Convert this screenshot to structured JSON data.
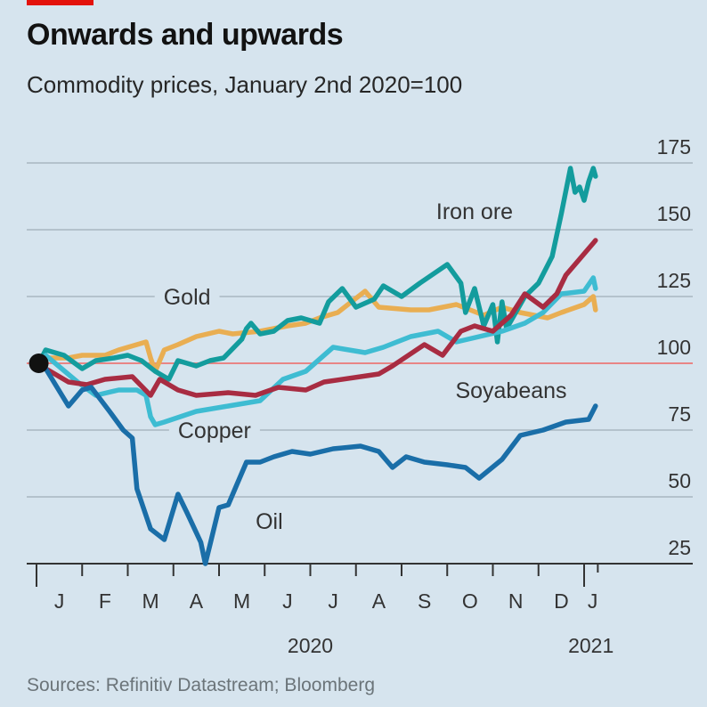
{
  "header": {
    "title": "Onwards and upwards",
    "subtitle": "Commodity prices, January 2nd 2020=100"
  },
  "footer": {
    "source": "Sources: Refinitiv Datastream; Bloomberg"
  },
  "colors": {
    "background": "#d6e4ee",
    "brand_red": "#e3120b",
    "baseline": "#e88585",
    "gridline": "#b4c2cc",
    "axis": "#333333"
  },
  "chart_data": {
    "type": "line",
    "title": "Onwards and upwards",
    "subtitle": "Commodity prices, January 2nd 2020=100",
    "xlabel": "",
    "ylabel": "",
    "x_unit": "months since Jan 1 2020",
    "xlim": [
      0,
      12.3
    ],
    "ylim": [
      25,
      175
    ],
    "yticks": [
      25,
      50,
      75,
      100,
      125,
      150,
      175
    ],
    "ytick_labels": [
      "25",
      "50",
      "75",
      "100",
      "125",
      "150",
      "175"
    ],
    "yaxis_side": "right",
    "grid": true,
    "baseline": 100,
    "xtick_labels": [
      "J",
      "F",
      "M",
      "A",
      "M",
      "J",
      "J",
      "A",
      "S",
      "O",
      "N",
      "D",
      "J"
    ],
    "year_labels": [
      {
        "label": "2020",
        "at": 6.0
      },
      {
        "label": "2021",
        "at": 12.15
      }
    ],
    "start_marker": {
      "x": 0.05,
      "y": 100
    },
    "series": [
      {
        "name": "Gold",
        "color": "#e9ae52",
        "label": "Gold",
        "x": [
          0.05,
          0.2,
          0.7,
          1.0,
          1.5,
          1.8,
          2.2,
          2.4,
          2.5,
          2.6,
          2.8,
          3.1,
          3.5,
          4.0,
          4.3,
          4.9,
          5.2,
          5.5,
          5.9,
          6.2,
          6.6,
          7.2,
          7.5,
          8.2,
          8.6,
          9.2,
          9.8,
          10.2,
          10.6,
          11.2,
          11.5,
          12.0,
          12.2,
          12.25
        ],
        "y": [
          100,
          102,
          102,
          103,
          103,
          105,
          107,
          108,
          102,
          97,
          105,
          107,
          110,
          112,
          111,
          112,
          113,
          114,
          115,
          117,
          119,
          127,
          121,
          120,
          120,
          122,
          118,
          121,
          119,
          117,
          119,
          122,
          125,
          120
        ]
      },
      {
        "name": "Iron ore",
        "color": "#139c9d",
        "label": "Iron ore",
        "x": [
          0.05,
          0.2,
          0.6,
          1.0,
          1.3,
          1.7,
          2.0,
          2.3,
          2.6,
          2.9,
          3.1,
          3.5,
          3.8,
          4.1,
          4.5,
          4.6,
          4.7,
          4.9,
          5.2,
          5.5,
          5.8,
          6.2,
          6.4,
          6.7,
          7.0,
          7.4,
          7.6,
          8.0,
          8.4,
          9.0,
          9.3,
          9.4,
          9.6,
          9.8,
          10.0,
          10.1,
          10.2,
          10.3,
          10.7,
          11.0,
          11.3,
          11.5,
          11.7,
          11.8,
          11.9,
          12.0,
          12.1,
          12.2,
          12.25
        ],
        "y": [
          100,
          105,
          103,
          98,
          101,
          102,
          103,
          101,
          97,
          94,
          101,
          99,
          101,
          102,
          109,
          113,
          115,
          111,
          112,
          116,
          117,
          115,
          123,
          128,
          121,
          124,
          129,
          125,
          130,
          137,
          130,
          119,
          128,
          114,
          122,
          108,
          123,
          113,
          125,
          130,
          140,
          156,
          173,
          164,
          166,
          161,
          168,
          173,
          170
        ]
      },
      {
        "name": "Copper",
        "color": "#3ebcd2",
        "label": "Copper",
        "x": [
          0.05,
          0.2,
          0.9,
          1.3,
          1.8,
          2.2,
          2.4,
          2.5,
          2.6,
          2.8,
          3.5,
          4.2,
          4.9,
          5.4,
          5.9,
          6.5,
          7.2,
          7.6,
          8.2,
          8.8,
          9.2,
          10.2,
          10.7,
          11.1,
          11.5,
          12.0,
          12.2,
          12.25
        ],
        "y": [
          100,
          103,
          93,
          88,
          90,
          90,
          88,
          80,
          77,
          78,
          82,
          84,
          86,
          94,
          97,
          106,
          104,
          106,
          110,
          112,
          108,
          112,
          115,
          119,
          126,
          127,
          132,
          128
        ]
      },
      {
        "name": "Soyabeans",
        "color": "#a82c42",
        "label": "Soyabeans",
        "x": [
          0.05,
          0.2,
          0.7,
          1.1,
          1.5,
          2.1,
          2.5,
          2.7,
          3.1,
          3.5,
          4.2,
          4.8,
          5.3,
          5.9,
          6.3,
          7.5,
          7.8,
          8.5,
          8.9,
          9.3,
          9.6,
          10.0,
          10.4,
          10.7,
          11.1,
          11.4,
          11.6,
          11.9,
          12.2,
          12.25
        ],
        "y": [
          100,
          98,
          93,
          92,
          94,
          95,
          88,
          94,
          90,
          88,
          89,
          88,
          91,
          90,
          93,
          96,
          99,
          107,
          103,
          112,
          114,
          112,
          118,
          126,
          121,
          126,
          133,
          139,
          145,
          146
        ]
      },
      {
        "name": "Oil",
        "color": "#1a6ea8",
        "label": "Oil",
        "x": [
          0.05,
          0.2,
          0.7,
          1.0,
          1.2,
          1.6,
          1.9,
          2.1,
          2.2,
          2.5,
          2.8,
          3.1,
          3.3,
          3.6,
          3.7,
          3.8,
          4.0,
          4.2,
          4.4,
          4.6,
          4.9,
          5.2,
          5.6,
          6.0,
          6.5,
          7.1,
          7.5,
          7.8,
          8.1,
          8.5,
          9.0,
          9.4,
          9.7,
          10.2,
          10.6,
          11.1,
          11.6,
          12.1,
          12.25
        ],
        "y": [
          100,
          98,
          84,
          90,
          91,
          82,
          75,
          72,
          53,
          38,
          34,
          51,
          44,
          33,
          25,
          32,
          46,
          47,
          55,
          63,
          63,
          65,
          67,
          66,
          68,
          69,
          67,
          61,
          65,
          63,
          62,
          61,
          57,
          64,
          73,
          75,
          78,
          79,
          84
        ]
      }
    ],
    "series_labels": [
      {
        "series": "Iron ore",
        "x": 9.6,
        "y": 154
      },
      {
        "series": "Gold",
        "x": 3.3,
        "y": 122
      },
      {
        "series": "Copper",
        "x": 3.9,
        "y": 72
      },
      {
        "series": "Soyabeans",
        "x": 10.4,
        "y": 87
      },
      {
        "series": "Oil",
        "x": 5.1,
        "y": 38
      }
    ]
  }
}
